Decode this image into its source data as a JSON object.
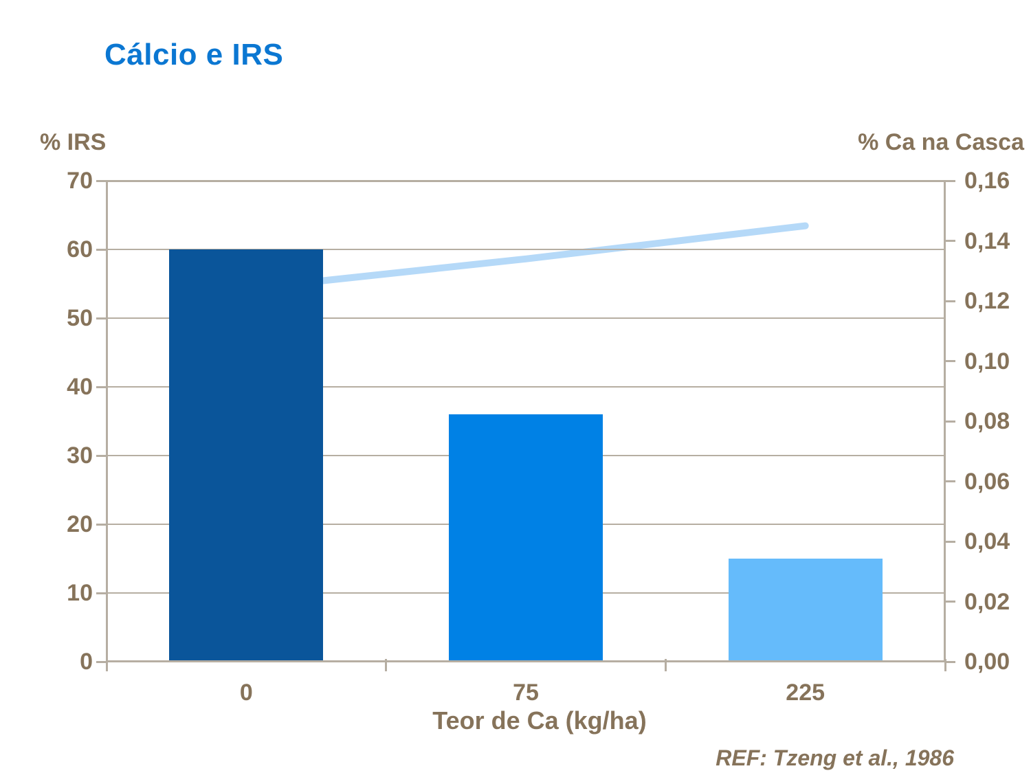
{
  "title": "Cálcio e IRS",
  "reference": "REF: Tzeng et al., 1986",
  "colors": {
    "title_text": "#0B77D2",
    "axis_text": "#86735A",
    "frame": "#B6AEA2",
    "bar_colors": [
      "#0A559A",
      "#0081E5",
      "#65BBFB"
    ],
    "line": "#B5D9F8"
  },
  "chart_data": {
    "type": "bar",
    "subtype": "combo-bar-line-dual-axis",
    "categories": [
      "0",
      "75",
      "225"
    ],
    "series": [
      {
        "name": "% IRS",
        "type": "bar",
        "axis": "left",
        "values": [
          60,
          36,
          15
        ]
      },
      {
        "name": "% Ca na Casca",
        "type": "line",
        "axis": "right",
        "values": [
          0.124,
          0.134,
          0.145
        ]
      }
    ],
    "x_axis": {
      "title": "Teor de Ca (kg/ha)"
    },
    "left_axis": {
      "title": "% IRS",
      "min": 0,
      "max": 70,
      "tick_step": 10,
      "ticks": [
        "70",
        "60",
        "50",
        "40",
        "30",
        "20",
        "10",
        "0"
      ]
    },
    "right_axis": {
      "title": "% Ca na Casca",
      "min": 0,
      "max": 0.16,
      "tick_step": 0.02,
      "ticks": [
        "0,16",
        "0,14",
        "0,12",
        "0,10",
        "0,08",
        "0,06",
        "0,04",
        "0,02",
        "0,00"
      ]
    },
    "grid": "horizontal-left-axis-only",
    "legend": "none"
  }
}
